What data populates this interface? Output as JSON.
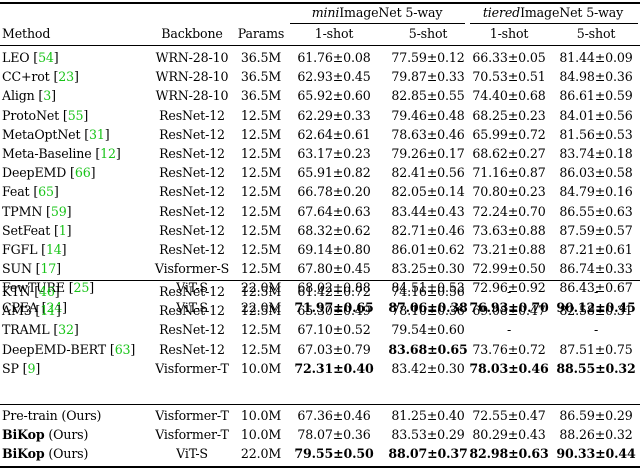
{
  "header": {
    "method": "Method",
    "backbone": "Backbone",
    "params": "Params",
    "dataset1_italic": "mini",
    "dataset1_rest": "ImageNet 5-way",
    "dataset2_italic": "tiered",
    "dataset2_rest": "ImageNet 5-way",
    "shot1": "1-shot",
    "shot5": "5-shot"
  },
  "groups": [
    [
      {
        "name": "LEO",
        "ref": "54",
        "backbone": "WRN-28-10",
        "params": "36.5M",
        "m1": "61.76±0.08",
        "m5": "77.59±0.12",
        "t1": "66.33±0.05",
        "t5": "81.44±0.09"
      },
      {
        "name": "CC+rot",
        "ref": "23",
        "backbone": "WRN-28-10",
        "params": "36.5M",
        "m1": "62.93±0.45",
        "m5": "79.87±0.33",
        "t1": "70.53±0.51",
        "t5": "84.98±0.36"
      },
      {
        "name": "Align",
        "ref": "3",
        "backbone": "WRN-28-10",
        "params": "36.5M",
        "m1": "65.92±0.60",
        "m5": "82.85±0.55",
        "t1": "74.40±0.68",
        "t5": "86.61±0.59"
      },
      {
        "name": "ProtoNet",
        "ref": "55",
        "backbone": "ResNet-12",
        "params": "12.5M",
        "m1": "62.29±0.33",
        "m5": "79.46±0.48",
        "t1": "68.25±0.23",
        "t5": "84.01±0.56"
      },
      {
        "name": "MetaOptNet",
        "ref": "31",
        "backbone": "ResNet-12",
        "params": "12.5M",
        "m1": "62.64±0.61",
        "m5": "78.63±0.46",
        "t1": "65.99±0.72",
        "t5": "81.56±0.53"
      },
      {
        "name": "Meta-Baseline",
        "ref": "12",
        "backbone": "ResNet-12",
        "params": "12.5M",
        "m1": "63.17±0.23",
        "m5": "79.26±0.17",
        "t1": "68.62±0.27",
        "t5": "83.74±0.18"
      },
      {
        "name": "DeepEMD",
        "ref": "66",
        "backbone": "ResNet-12",
        "params": "12.5M",
        "m1": "65.91±0.82",
        "m5": "82.41±0.56",
        "t1": "71.16±0.87",
        "t5": "86.03±0.58"
      },
      {
        "name": "Feat",
        "ref": "65",
        "backbone": "ResNet-12",
        "params": "12.5M",
        "m1": "66.78±0.20",
        "m5": "82.05±0.14",
        "t1": "70.80±0.23",
        "t5": "84.79±0.16"
      },
      {
        "name": "TPMN",
        "ref": "59",
        "backbone": "ResNet-12",
        "params": "12.5M",
        "m1": "67.64±0.63",
        "m5": "83.44±0.43",
        "t1": "72.24±0.70",
        "t5": "86.55±0.63"
      },
      {
        "name": "SetFeat",
        "ref": "1",
        "backbone": "ResNet-12",
        "params": "12.5M",
        "m1": "68.32±0.62",
        "m5": "82.71±0.46",
        "t1": "73.63±0.88",
        "t5": "87.59±0.57"
      },
      {
        "name": "FGFL",
        "ref": "14",
        "backbone": "ResNet-12",
        "params": "12.5M",
        "m1": "69.14±0.80",
        "m5": "86.01±0.62",
        "t1": "73.21±0.88",
        "t5": "87.21±0.61"
      },
      {
        "name": "SUN",
        "ref": "17",
        "backbone": "Visformer-S",
        "params": "12.5M",
        "m1": "67.80±0.45",
        "m5": "83.25±0.30",
        "t1": "72.99±0.50",
        "t5": "86.74±0.33"
      },
      {
        "name": "FewTURE",
        "ref": "25",
        "backbone": "ViT-S",
        "params": "22.0M",
        "m1": "68.02±0.88",
        "m5": "84.51±0.53",
        "t1": "72.96±0.92",
        "t5": "86.43±0.67"
      },
      {
        "name": "CPEA",
        "ref": "24",
        "backbone": "ViT-S",
        "params": "22.0M",
        "m1": "71.97±0.65",
        "m5": "87.06±0.38",
        "t1": "76.93±0.70",
        "t5": "90.12±0.45",
        "bold": [
          "m1",
          "m5",
          "t1",
          "t5"
        ]
      }
    ],
    [
      {
        "name": "KTN",
        "ref": "46",
        "backbone": "ResNet-12",
        "params": "12.5M",
        "m1": "61.42±0.72",
        "m5": "74.16±0.56",
        "t1": "-",
        "t5": "-"
      },
      {
        "name": "AM3",
        "ref": "11",
        "backbone": "ResNet-12",
        "params": "12.5M",
        "m1": "65.30±0.49",
        "m5": "78.10±0.36",
        "t1": "69.08±0.47",
        "t5": "82.58±0.31"
      },
      {
        "name": "TRAML",
        "ref": "32",
        "backbone": "ResNet-12",
        "params": "12.5M",
        "m1": "67.10±0.52",
        "m5": "79.54±0.60",
        "t1": "-",
        "t5": "-"
      },
      {
        "name": "DeepEMD-BERT",
        "ref": "63",
        "backbone": "ResNet-12",
        "params": "12.5M",
        "m1": "67.03±0.79",
        "m5": "83.68±0.65",
        "t1": "73.76±0.72",
        "t5": "87.51±0.75",
        "bold": [
          "m5"
        ]
      },
      {
        "name": "SP",
        "ref": "9",
        "backbone": "Visformer-T",
        "params": "10.0M",
        "m1": "72.31±0.40",
        "m5": "83.42±0.30",
        "t1": "78.03±0.46",
        "t5": "88.55±0.32",
        "bold": [
          "m1",
          "t1",
          "t5"
        ]
      }
    ],
    [
      {
        "name": "Pre-train (Ours)",
        "ref": "",
        "backbone": "Visformer-T",
        "params": "10.0M",
        "m1": "67.36±0.46",
        "m5": "81.25±0.40",
        "t1": "72.55±0.47",
        "t5": "86.59±0.29"
      },
      {
        "name_bold": "BiKop",
        "name": " (Ours)",
        "ref": "",
        "backbone": "Visformer-T",
        "params": "10.0M",
        "m1": "78.07±0.36",
        "m5": "83.53±0.29",
        "t1": "80.29±0.43",
        "t5": "88.26±0.32"
      },
      {
        "name_bold": "BiKop",
        "name": " (Ours)",
        "ref": "",
        "backbone": "ViT-S",
        "params": "22.0M",
        "m1": "79.55±0.50",
        "m5": "88.07±0.37",
        "t1": "82.98±0.63",
        "t5": "90.33±0.44",
        "bold": [
          "m1",
          "m5",
          "t1",
          "t5"
        ]
      }
    ]
  ]
}
